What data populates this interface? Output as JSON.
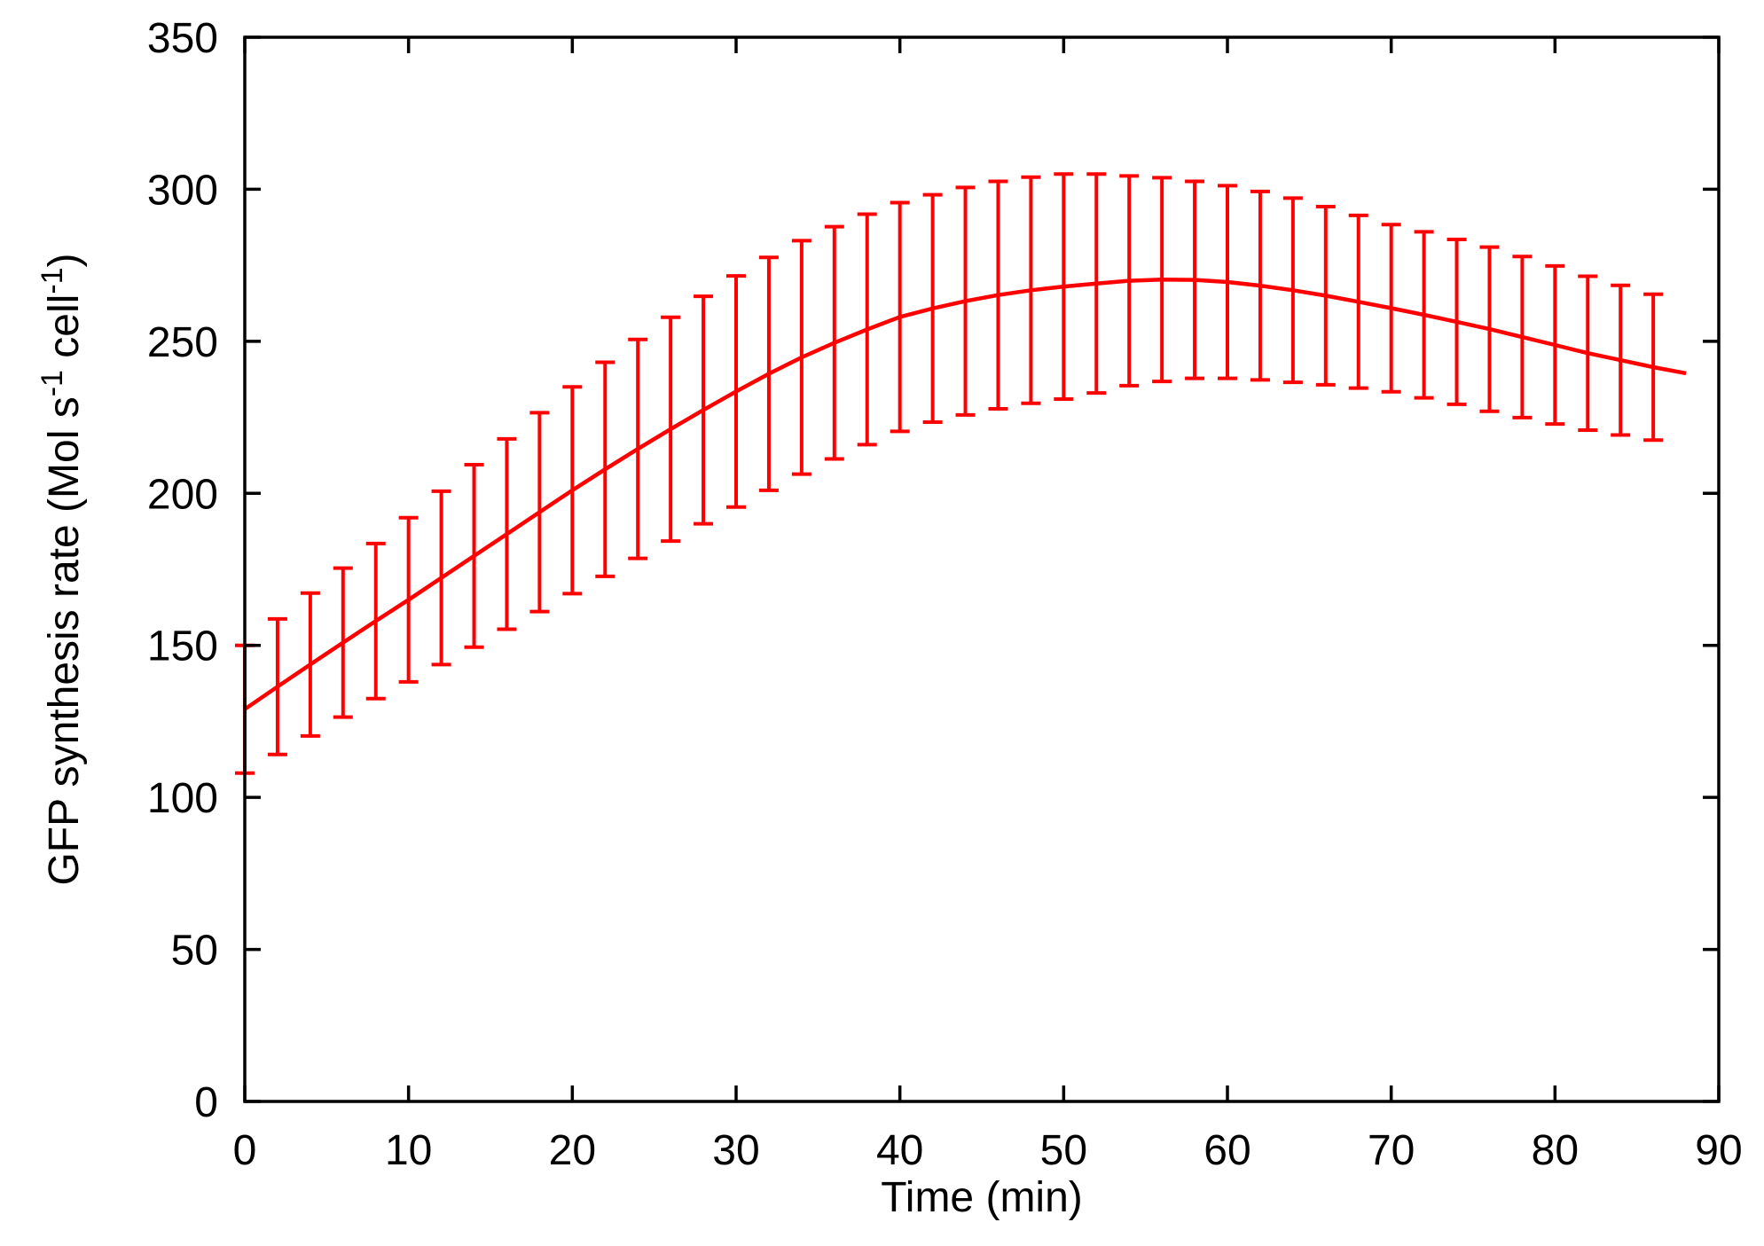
{
  "figure": {
    "background": "#ffffff",
    "xlabel": "Time (min)",
    "ylabel_parts": [
      {
        "text": "GFP synthesis rate (Mol s",
        "sup": false
      },
      {
        "text": "-1",
        "sup": true
      },
      {
        "text": " cell",
        "sup": false
      },
      {
        "text": "-1",
        "sup": true
      },
      {
        "text": ")",
        "sup": false
      }
    ]
  },
  "chart_data": {
    "type": "line",
    "title": "",
    "xlabel": "Time (min)",
    "ylabel": "GFP synthesis rate (Mol s-1 cell-1)",
    "xlim": [
      0,
      90
    ],
    "ylim": [
      0,
      350
    ],
    "x_ticks": [
      0,
      10,
      20,
      30,
      40,
      50,
      60,
      70,
      80,
      90
    ],
    "y_ticks": [
      0,
      50,
      100,
      150,
      200,
      250,
      300,
      350
    ],
    "grid": false,
    "legend_position": "none",
    "line_color": "#ff0000",
    "axis_color": "#000000",
    "tick_style": "inward-mirrored",
    "series": [
      {
        "name": "GFP synthesis rate",
        "points": [
          [
            0,
            129.0
          ],
          [
            2,
            136.4
          ],
          [
            4,
            143.7
          ],
          [
            6,
            150.9
          ],
          [
            8,
            158.0
          ],
          [
            10,
            165.0
          ],
          [
            12,
            172.2
          ],
          [
            14,
            179.4
          ],
          [
            16,
            186.6
          ],
          [
            18,
            193.8
          ],
          [
            20,
            201.0
          ],
          [
            22,
            207.9
          ],
          [
            24,
            214.6
          ],
          [
            26,
            221.1
          ],
          [
            28,
            227.4
          ],
          [
            30,
            233.5
          ],
          [
            32,
            239.3
          ],
          [
            34,
            244.7
          ],
          [
            36,
            249.5
          ],
          [
            38,
            253.9
          ],
          [
            40,
            258.0
          ],
          [
            42,
            260.8
          ],
          [
            44,
            263.2
          ],
          [
            46,
            265.2
          ],
          [
            48,
            266.8
          ],
          [
            50,
            268.0
          ],
          [
            52,
            269.0
          ],
          [
            54,
            269.9
          ],
          [
            56,
            270.3
          ],
          [
            58,
            270.2
          ],
          [
            60,
            269.5
          ],
          [
            62,
            268.3
          ],
          [
            64,
            266.8
          ],
          [
            66,
            265.0
          ],
          [
            68,
            263.0
          ],
          [
            70,
            260.9
          ],
          [
            72,
            258.7
          ],
          [
            74,
            256.4
          ],
          [
            76,
            254.0
          ],
          [
            78,
            251.4
          ],
          [
            80,
            248.8
          ],
          [
            82,
            246.1
          ],
          [
            84,
            243.8
          ],
          [
            86,
            241.5
          ],
          [
            88,
            239.5
          ]
        ],
        "error_bars": [
          [
            0,
            129.0,
            21.0
          ],
          [
            2,
            136.4,
            22.3
          ],
          [
            4,
            143.7,
            23.5
          ],
          [
            6,
            150.9,
            24.5
          ],
          [
            8,
            158.0,
            25.5
          ],
          [
            10,
            165.0,
            27.0
          ],
          [
            12,
            172.2,
            28.5
          ],
          [
            14,
            179.4,
            30.0
          ],
          [
            16,
            186.6,
            31.3
          ],
          [
            18,
            193.8,
            32.7
          ],
          [
            20,
            201.0,
            34.0
          ],
          [
            22,
            207.9,
            35.2
          ],
          [
            24,
            214.6,
            36.0
          ],
          [
            26,
            221.1,
            36.8
          ],
          [
            28,
            227.4,
            37.4
          ],
          [
            30,
            233.5,
            38.0
          ],
          [
            32,
            239.3,
            38.3
          ],
          [
            34,
            244.7,
            38.4
          ],
          [
            36,
            249.5,
            38.2
          ],
          [
            38,
            253.9,
            37.9
          ],
          [
            40,
            258.0,
            37.6
          ],
          [
            42,
            260.8,
            37.4
          ],
          [
            44,
            263.2,
            37.4
          ],
          [
            46,
            265.2,
            37.4
          ],
          [
            48,
            266.8,
            37.2
          ],
          [
            50,
            268.0,
            37.0
          ],
          [
            52,
            269.0,
            36.0
          ],
          [
            54,
            269.9,
            34.5
          ],
          [
            56,
            270.3,
            33.5
          ],
          [
            58,
            270.2,
            32.4
          ],
          [
            60,
            269.5,
            31.7
          ],
          [
            62,
            268.3,
            31.0
          ],
          [
            64,
            266.8,
            30.3
          ],
          [
            66,
            265.0,
            29.3
          ],
          [
            68,
            263.0,
            28.4
          ],
          [
            70,
            260.9,
            27.5
          ],
          [
            72,
            258.7,
            27.3
          ],
          [
            74,
            256.4,
            27.1
          ],
          [
            76,
            254.0,
            27.0
          ],
          [
            78,
            251.4,
            26.5
          ],
          [
            80,
            248.8,
            26.0
          ],
          [
            82,
            246.1,
            25.3
          ],
          [
            84,
            243.8,
            24.6
          ],
          [
            86,
            241.5,
            24.0
          ]
        ]
      }
    ]
  }
}
